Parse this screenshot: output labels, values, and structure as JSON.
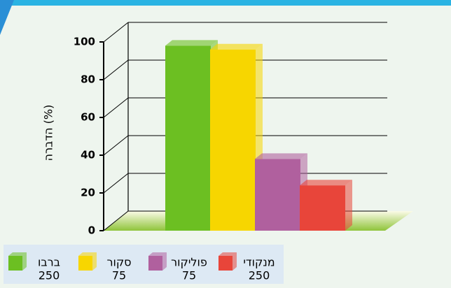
{
  "chart_data": {
    "type": "bar3d",
    "y_label": "הדברה (%)",
    "categories": [
      {
        "name": "ברבו",
        "dose": "250"
      },
      {
        "name": "סקור",
        "dose": "75"
      },
      {
        "name": "פוליקור",
        "dose": "75"
      },
      {
        "name": "מנקודי",
        "dose": "250"
      }
    ],
    "values": [
      98,
      96,
      38,
      24
    ],
    "colors": [
      "#6cbf22",
      "#f7d600",
      "#b0609e",
      "#e8453a"
    ],
    "ylim": [
      0,
      100
    ],
    "yticks": [
      0,
      20,
      40,
      60,
      80,
      100
    ],
    "grid": true
  }
}
